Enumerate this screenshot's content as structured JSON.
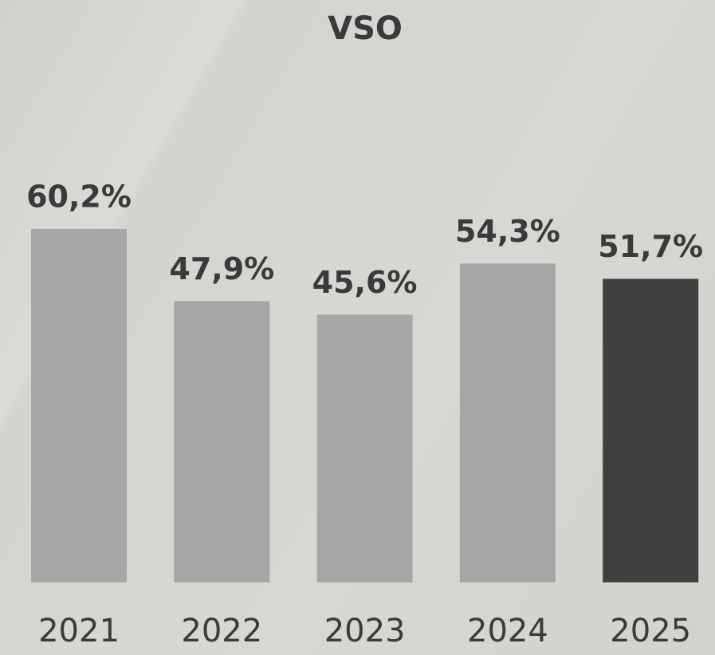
{
  "chart_data": {
    "type": "bar",
    "title": "VSO",
    "categories": [
      "2021",
      "2022",
      "2023",
      "2024",
      "2025"
    ],
    "values": [
      60.2,
      47.9,
      45.6,
      54.3,
      51.7
    ],
    "value_labels": [
      "60,2%",
      "47,9%",
      "45,6%",
      "54,3%",
      "51,7%"
    ],
    "colors": [
      "#a6a6a6",
      "#a6a6a6",
      "#a6a6a6",
      "#a6a6a6",
      "#404040"
    ]
  }
}
